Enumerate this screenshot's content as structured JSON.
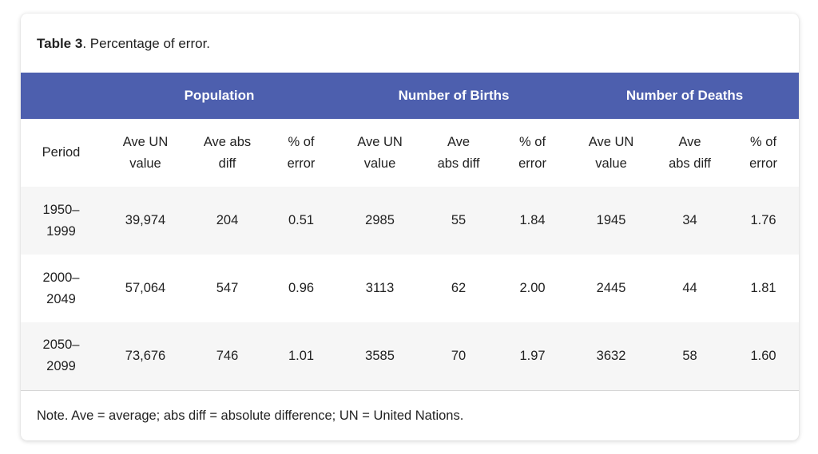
{
  "caption": {
    "label": "Table 3",
    "text": ". Percentage of error."
  },
  "table": {
    "groups": [
      "Population",
      "Number of Births",
      "Number of Deaths"
    ],
    "sub_headers": [
      "Period",
      "Ave UN\nvalue",
      "Ave abs\ndiff",
      "% of\nerror",
      "Ave UN\nvalue",
      "Ave\nabs diff",
      "% of\nerror",
      "Ave UN\nvalue",
      "Ave\nabs diff",
      "% of\nerror"
    ],
    "rows": [
      [
        "1950–\n1999",
        "39,974",
        "204",
        "0.51",
        "2985",
        "55",
        "1.84",
        "1945",
        "34",
        "1.76"
      ],
      [
        "2000–\n2049",
        "57,064",
        "547",
        "0.96",
        "3113",
        "62",
        "2.00",
        "2445",
        "44",
        "1.81"
      ],
      [
        "2050–\n2099",
        "73,676",
        "746",
        "1.01",
        "3585",
        "70",
        "1.97",
        "3632",
        "58",
        "1.60"
      ]
    ]
  },
  "note": "Note. Ave = average; abs diff = absolute difference; UN = United Nations.",
  "colors": {
    "header_bg": "#4d5fae",
    "header_text": "#ffffff",
    "stripe": "#f6f6f6"
  }
}
